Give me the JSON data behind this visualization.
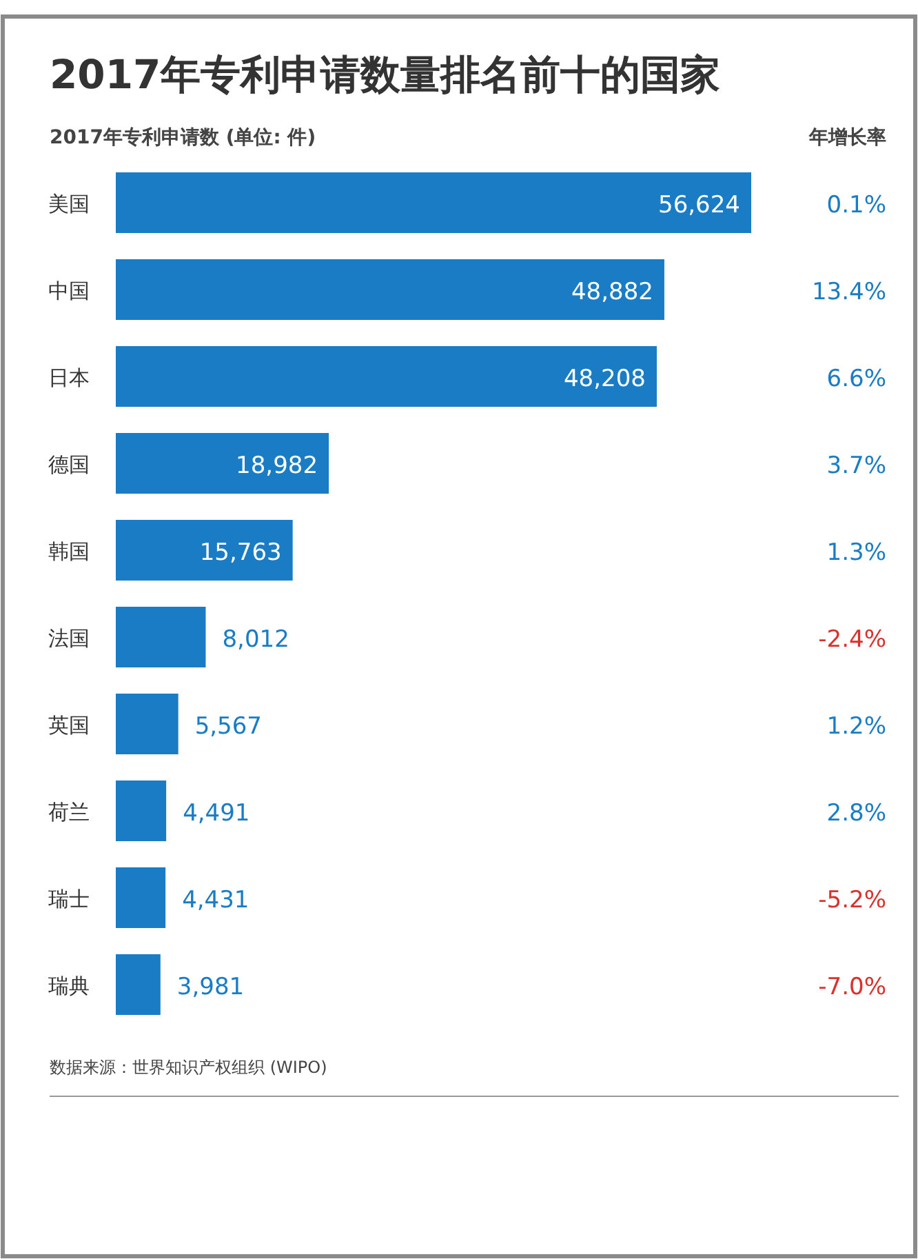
{
  "chart_data": {
    "type": "bar",
    "orientation": "horizontal",
    "title": "2017年专利申请数量排名前十的国家",
    "subtitle": "2017年专利申请数 (单位: 件)",
    "categories": [
      "美国",
      "中国",
      "日本",
      "德国",
      "韩国",
      "法国",
      "英国",
      "荷兰",
      "瑞士",
      "瑞典"
    ],
    "values": [
      56624,
      48882,
      48208,
      18982,
      15763,
      8012,
      5567,
      4491,
      4431,
      3981
    ],
    "value_labels": [
      "56,624",
      "48,882",
      "48,208",
      "18,982",
      "15,763",
      "8,012",
      "5,567",
      "4,491",
      "4,431",
      "3,981"
    ],
    "color": "#1a7cc4",
    "annotations": [
      "年增长率",
      "0.1%",
      "13.4%",
      "6.6%",
      "3.7%",
      "1.3%",
      "-2.4%",
      "1.2%",
      "2.8%",
      "-5.2%",
      "-7.0%",
      "数据来源：世界知识产权组织 (WIPO)"
    ]
  }
}
